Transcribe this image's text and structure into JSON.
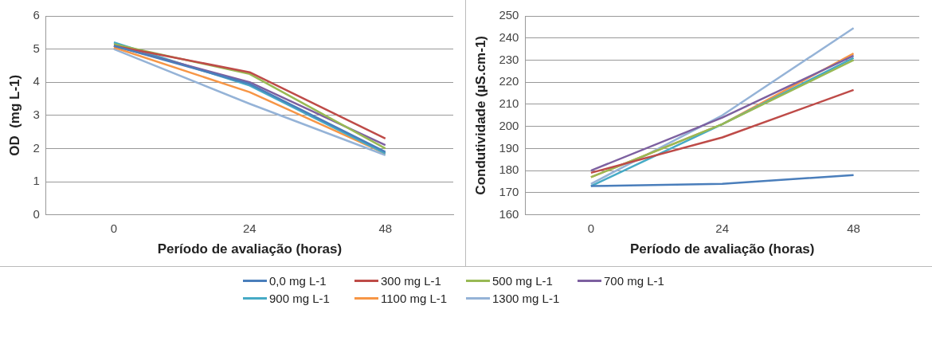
{
  "chart_data": [
    {
      "type": "line",
      "xlabel": "Período de avaliação (horas)",
      "ylabel": "OD  (mg L-1)",
      "categories": [
        "0",
        "24",
        "48"
      ],
      "ylim": [
        0,
        6
      ],
      "yticks": [
        0,
        1,
        2,
        3,
        4,
        5,
        6
      ],
      "grid": "y",
      "legend": "bottom",
      "marker": "none",
      "line_style": "solid",
      "series": [
        {
          "name": "0,0 mg L-1",
          "color": "#4a7ebb",
          "values": [
            5.1,
            3.95,
            1.9
          ]
        },
        {
          "name": "300 mg L-1",
          "color": "#be4b48",
          "values": [
            5.1,
            4.3,
            2.3
          ]
        },
        {
          "name": "500 mg L-1",
          "color": "#98b954",
          "values": [
            5.15,
            4.25,
            2.0
          ]
        },
        {
          "name": "700 mg L-1",
          "color": "#7d60a0",
          "values": [
            5.1,
            4.0,
            2.1
          ]
        },
        {
          "name": "900 mg L-1",
          "color": "#46aac5",
          "values": [
            5.2,
            3.9,
            1.85
          ]
        },
        {
          "name": "1100 mg L-1",
          "color": "#f79646",
          "values": [
            5.05,
            3.7,
            1.85
          ]
        },
        {
          "name": "1300 mg L-1",
          "color": "#95b3d7",
          "values": [
            5.0,
            3.35,
            1.8
          ]
        }
      ]
    },
    {
      "type": "line",
      "xlabel": "Período de avaliação (horas)",
      "ylabel": "Condutividade (µS.cm-1)",
      "categories": [
        "0",
        "24",
        "48"
      ],
      "ylim": [
        160,
        250
      ],
      "yticks": [
        160,
        170,
        180,
        190,
        200,
        210,
        220,
        230,
        240,
        250
      ],
      "grid": "y",
      "marker": "none",
      "line_style": "solid",
      "series": [
        {
          "color": "#4a7ebb",
          "values": [
            173,
            174,
            178
          ]
        },
        {
          "color": "#be4b48",
          "values": [
            179,
            195,
            216.5
          ]
        },
        {
          "color": "#98b954",
          "values": [
            177,
            201,
            230
          ]
        },
        {
          "color": "#7d60a0",
          "values": [
            180,
            204,
            232
          ]
        },
        {
          "color": "#46aac5",
          "values": [
            173,
            201,
            231
          ]
        },
        {
          "color": "#f79646",
          "values": [
            177,
            201,
            233
          ]
        },
        {
          "color": "#95b3d7",
          "values": [
            174,
            205,
            244.5
          ]
        }
      ]
    }
  ]
}
